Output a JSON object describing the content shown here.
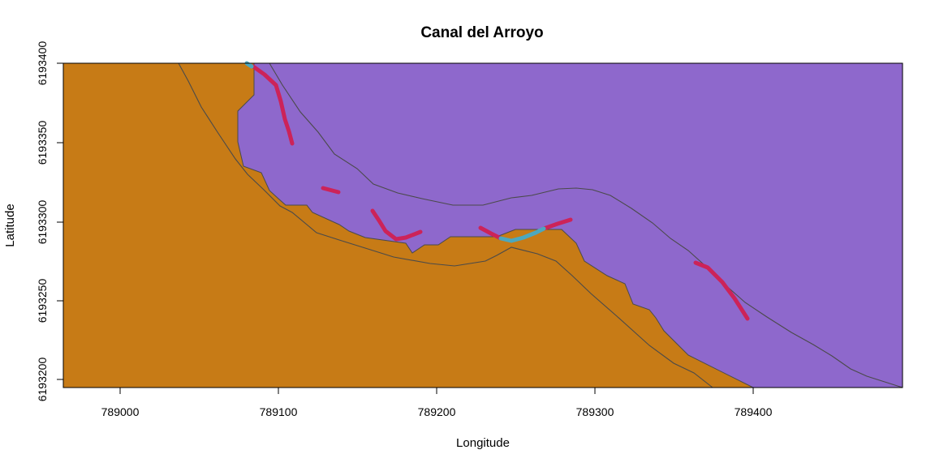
{
  "title": "Canal del Arroyo",
  "x_axis": {
    "label": "Longitude",
    "ticks": [
      "789000",
      "789100",
      "789200",
      "789300",
      "789400"
    ]
  },
  "y_axis": {
    "label": "Latitude",
    "ticks": [
      "6193200",
      "6193250",
      "6193300",
      "6193350",
      "6193400"
    ]
  },
  "extent": {
    "x": [
      788964,
      789494
    ],
    "y": [
      6193195,
      6193400
    ]
  },
  "colors": {
    "land": "#C77B16",
    "water": "#8E68CC",
    "contour": "#4A4A4A",
    "red_segments": "#CC2359",
    "cyan_segments": "#4CA8BE",
    "frame": "#000000"
  },
  "layers": [
    {
      "name": "land",
      "color": "land"
    },
    {
      "name": "water",
      "color": "water"
    },
    {
      "name": "contour lines",
      "color": "contour"
    },
    {
      "name": "red line segments",
      "color": "red_segments"
    },
    {
      "name": "cyan line segments",
      "color": "cyan_segments"
    }
  ]
}
